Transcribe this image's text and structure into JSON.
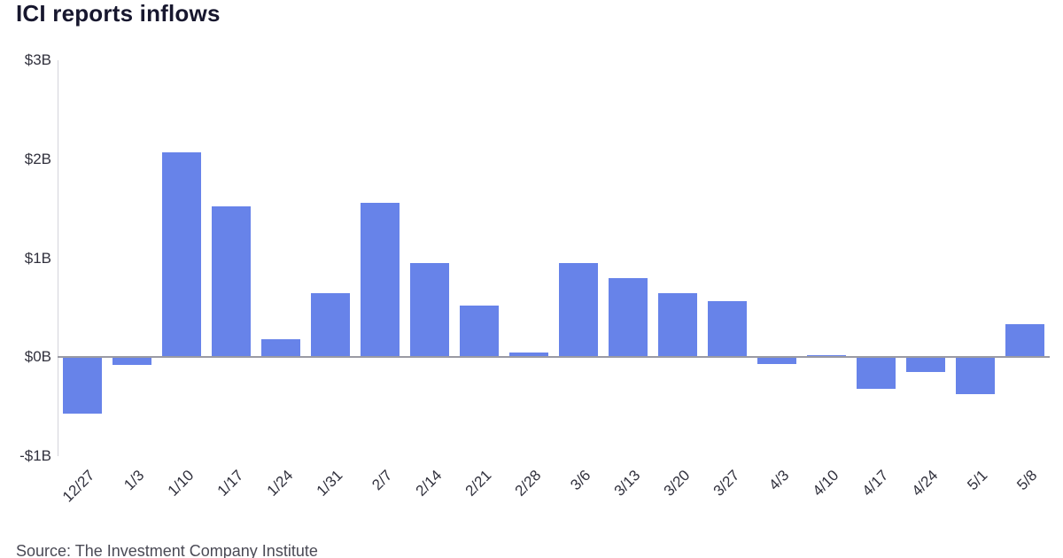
{
  "page": {
    "title": "ICI reports inflows",
    "source": "Source: The Investment Company Institute"
  },
  "chart_data": {
    "type": "bar",
    "title": "ICI reports inflows",
    "categories": [
      "12/27",
      "1/3",
      "1/10",
      "1/17",
      "1/24",
      "1/31",
      "2/7",
      "2/14",
      "2/21",
      "2/28",
      "3/6",
      "3/13",
      "3/20",
      "3/27",
      "4/3",
      "4/10",
      "4/17",
      "4/24",
      "5/1",
      "5/8"
    ],
    "values": [
      -0.57,
      -0.08,
      2.07,
      1.52,
      0.18,
      0.65,
      1.56,
      0.95,
      0.52,
      0.05,
      0.95,
      0.8,
      0.65,
      0.57,
      -0.07,
      0.02,
      -0.32,
      -0.15,
      -0.37,
      0.33
    ],
    "unit": "billions USD (weekly fund flows)",
    "xlabel": "",
    "ylabel": "",
    "ylim": [
      -1,
      3
    ],
    "y_ticks": [
      {
        "label": "$3B",
        "value": 3
      },
      {
        "label": "$2B",
        "value": 2
      },
      {
        "label": "$1B",
        "value": 1
      },
      {
        "label": "$0B",
        "value": 0
      },
      {
        "label": "-$1B",
        "value": -1
      }
    ],
    "bar_color": "#6783e9",
    "grid": false,
    "legend": false,
    "source": "Source: The Investment Company Institute"
  }
}
